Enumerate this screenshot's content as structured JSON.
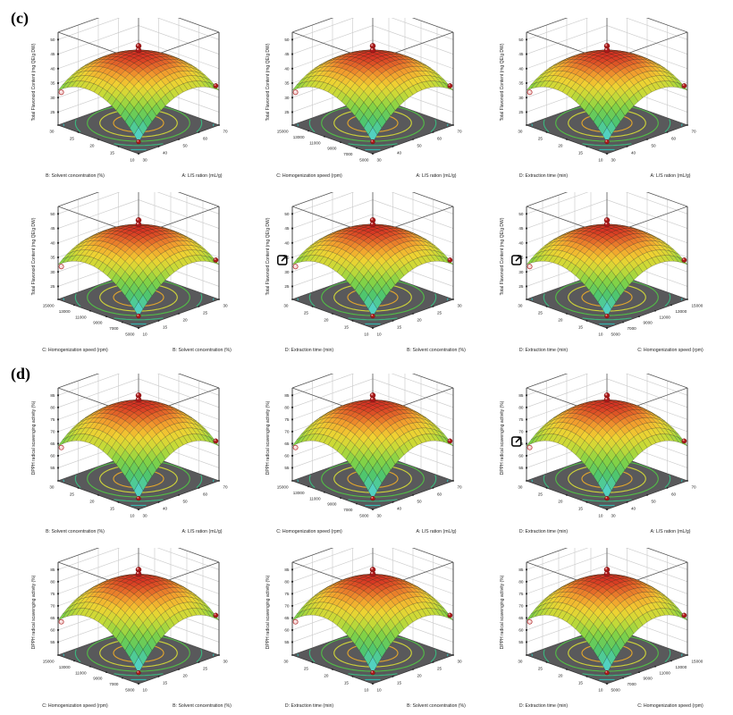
{
  "figure": {
    "section_c_label": "(c)",
    "section_d_label": "(d)"
  },
  "style": {
    "floor_color": "#59595b",
    "floor_edge_color": "#3a3a3a",
    "box_edge_color": "#555555",
    "wall_grid_color": "#c9c9c9",
    "mesh_line_color": "rgba(25,25,25,0.55)",
    "marker_red": "#ab1a1a",
    "marker_pink": "#f6dada",
    "contour_colors": [
      "#dfa42e",
      "#cdd23a",
      "#52bb47",
      "#3cb57e",
      "#35b3ab"
    ],
    "contour_radii": [
      0.22,
      0.34,
      0.45,
      0.555,
      0.66
    ],
    "surface_colormap": [
      {
        "t": 0.0,
        "c": "#68d8e0"
      },
      {
        "t": 0.12,
        "c": "#4ecfba"
      },
      {
        "t": 0.28,
        "c": "#50c66e"
      },
      {
        "t": 0.45,
        "c": "#82d246"
      },
      {
        "t": 0.6,
        "c": "#c8da37"
      },
      {
        "t": 0.72,
        "c": "#f0d232"
      },
      {
        "t": 0.84,
        "c": "#f29b2d"
      },
      {
        "t": 1.0,
        "c": "#d63023"
      }
    ]
  },
  "chart_data": {
    "type": "surface3d-grid",
    "description": "Response surface methodology (RSM) 3D surface plots with floor contour projections and design-point markers",
    "sections": [
      {
        "id": "c",
        "label": "(c)",
        "z_axis": {
          "label": "Total Flavonoid Content (mg QE/g DW)",
          "ticks": [
            25,
            30,
            35,
            40,
            45,
            50
          ]
        },
        "surface_estimate": {
          "peak_z": 44.5,
          "front_corner_z": 24.5,
          "side_corner_z": 32.5
        },
        "factors": {
          "A": {
            "label": "A: L/S ration (mL/g)",
            "ticks": [
              30,
              40,
              50,
              60,
              70
            ]
          },
          "B": {
            "label": "B: Solvent concentration (%)",
            "ticks": [
              10,
              15,
              20,
              25,
              30
            ]
          },
          "C": {
            "label": "C: Homogenization speed (rpm)",
            "ticks": [
              5000,
              7000,
              9000,
              11000,
              13000,
              15000
            ]
          },
          "D": {
            "label": "D: Extraction time (min)",
            "ticks": [
              10,
              15,
              20,
              25,
              30
            ]
          }
        },
        "plots": [
          {
            "x": "B",
            "y": "A",
            "popout": false
          },
          {
            "x": "C",
            "y": "A",
            "popout": false
          },
          {
            "x": "D",
            "y": "A",
            "popout": false
          },
          {
            "x": "C",
            "y": "B",
            "popout": false
          },
          {
            "x": "D",
            "y": "B",
            "popout": true
          },
          {
            "x": "D",
            "y": "C",
            "popout": true
          }
        ]
      },
      {
        "id": "d",
        "label": "(d)",
        "z_axis": {
          "label": "DPPH radical scavenging activity (%)",
          "ticks": [
            55,
            60,
            65,
            70,
            75,
            80,
            85
          ]
        },
        "surface_estimate": {
          "peak_z": 81,
          "front_corner_z": 54,
          "side_corner_z": 64
        },
        "factors": {
          "A": {
            "label": "A: L/S ration (mL/g)",
            "ticks": [
              30,
              40,
              50,
              60,
              70
            ]
          },
          "B": {
            "label": "B: Solvent concentration (%)",
            "ticks": [
              10,
              15,
              20,
              25,
              30
            ]
          },
          "C": {
            "label": "C: Homogenization speed (rpm)",
            "ticks": [
              5000,
              7000,
              9000,
              11000,
              13000,
              15000
            ]
          },
          "D": {
            "label": "D: Extraction time (min)",
            "ticks": [
              10,
              15,
              20,
              25,
              30
            ]
          }
        },
        "plots": [
          {
            "x": "B",
            "y": "A",
            "popout": false
          },
          {
            "x": "C",
            "y": "A",
            "popout": false
          },
          {
            "x": "D",
            "y": "A",
            "popout": true
          },
          {
            "x": "C",
            "y": "B",
            "popout": false
          },
          {
            "x": "D",
            "y": "B",
            "popout": false
          },
          {
            "x": "D",
            "y": "C",
            "popout": false
          }
        ]
      }
    ]
  }
}
